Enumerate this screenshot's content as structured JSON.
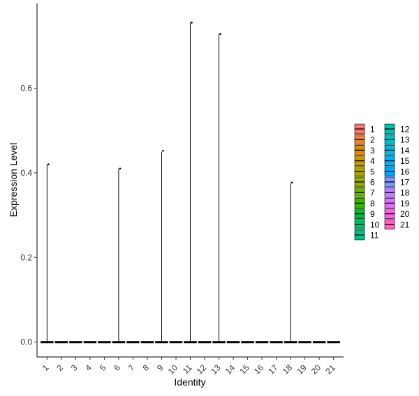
{
  "chart_data": {
    "type": "violin",
    "title": "",
    "xlabel": "Identity",
    "ylabel": "Expression Level",
    "categories": [
      "1",
      "2",
      "3",
      "4",
      "5",
      "6",
      "7",
      "8",
      "9",
      "10",
      "11",
      "12",
      "13",
      "14",
      "15",
      "16",
      "17",
      "18",
      "19",
      "20",
      "21"
    ],
    "max_values": [
      0.42,
      0,
      0,
      0,
      0,
      0.41,
      0,
      0,
      0.45,
      0,
      0.755,
      0,
      0.728,
      0,
      0,
      0,
      0,
      0.375,
      0,
      0,
      0
    ],
    "outlier_points": [
      {
        "category": "1",
        "y": 0.42
      },
      {
        "category": "6",
        "y": 0.41
      },
      {
        "category": "9",
        "y": 0.452
      },
      {
        "category": "11",
        "y": 0.755
      },
      {
        "category": "13",
        "y": 0.728
      },
      {
        "category": "18",
        "y": 0.377
      }
    ],
    "yticks": [
      0.0,
      0.2,
      0.4,
      0.6
    ],
    "ytick_labels": [
      "0.0",
      "0.2",
      "0.4",
      "0.6"
    ],
    "ylim": [
      -0.035,
      0.8
    ],
    "grid": false,
    "legend_position": "right",
    "legend": {
      "entries": [
        "1",
        "2",
        "3",
        "4",
        "5",
        "6",
        "7",
        "8",
        "9",
        "10",
        "11",
        "12",
        "13",
        "14",
        "15",
        "16",
        "17",
        "18",
        "19",
        "20",
        "21"
      ],
      "colors": [
        "#F8766D",
        "#EC8239",
        "#DB8E00",
        "#C79800",
        "#AFA100",
        "#93AA00",
        "#6FB000",
        "#36B600",
        "#00BA38",
        "#00BE6C",
        "#00C08E",
        "#00C1AB",
        "#00BFC4",
        "#00BADC",
        "#00B2F3",
        "#00A6FF",
        "#7F96FF",
        "#BC81FF",
        "#E26EF7",
        "#F863DF",
        "#FF62BC"
      ]
    }
  }
}
